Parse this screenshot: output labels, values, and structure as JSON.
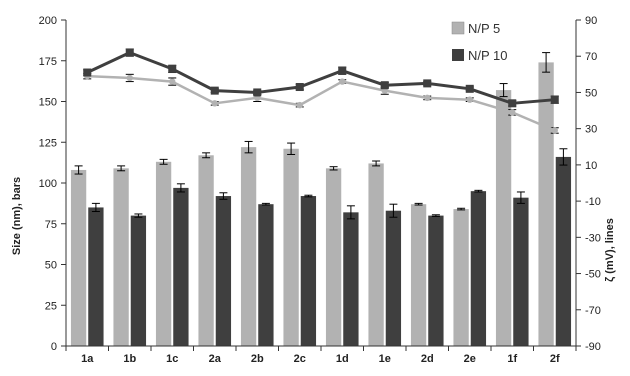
{
  "chart_data": {
    "type": "bar",
    "categories": [
      "1a",
      "1b",
      "1c",
      "2a",
      "2b",
      "2c",
      "1d",
      "1e",
      "2d",
      "2e",
      "1f",
      "2f"
    ],
    "ylabel": "Size (nm), bars",
    "y2label": "ζ (mV), lines",
    "ylim": [
      0,
      200
    ],
    "y2lim": [
      -90,
      90
    ],
    "yticks": [
      0,
      25,
      50,
      75,
      100,
      125,
      150,
      175,
      200
    ],
    "y2ticks": [
      -90,
      -70,
      -50,
      -30,
      -10,
      10,
      30,
      50,
      70,
      90
    ],
    "grid": false,
    "legend_position": "top-right",
    "colors": {
      "np5": "#b2b2b2",
      "np10": "#3f3f3f"
    },
    "series": [
      {
        "name": "N/P 5",
        "kind": "bar",
        "axis": "left",
        "values": [
          108,
          109,
          113,
          117,
          122,
          121,
          109,
          112,
          87,
          84,
          157,
          174
        ],
        "errors": [
          2.5,
          1.5,
          1.5,
          1.5,
          3.5,
          3.5,
          1,
          1.5,
          0.5,
          0.5,
          4,
          6
        ]
      },
      {
        "name": "N/P 10",
        "kind": "bar",
        "axis": "left",
        "values": [
          85,
          80,
          97,
          92,
          87,
          92,
          82,
          83,
          80,
          95,
          91,
          116
        ],
        "errors": [
          2.5,
          1,
          2.5,
          2,
          0.5,
          0.5,
          4,
          4,
          0.5,
          0.5,
          3.5,
          5
        ]
      },
      {
        "name": "N/P 5",
        "kind": "line",
        "axis": "right",
        "values": [
          59,
          58,
          56,
          44,
          47,
          43,
          56,
          51,
          47,
          46,
          39,
          29
        ],
        "errors": [
          1.5,
          2,
          2,
          1,
          2,
          1,
          1,
          2,
          1,
          1,
          1.5,
          1.5
        ]
      },
      {
        "name": "N/P 10",
        "kind": "line",
        "axis": "right",
        "values": [
          61,
          72,
          63,
          51,
          50,
          53,
          62,
          54,
          55,
          52,
          44,
          46
        ],
        "errors": [
          1.5,
          2,
          2,
          1,
          1,
          1.5,
          2,
          1.5,
          1,
          1,
          1.5,
          2
        ]
      }
    ]
  }
}
